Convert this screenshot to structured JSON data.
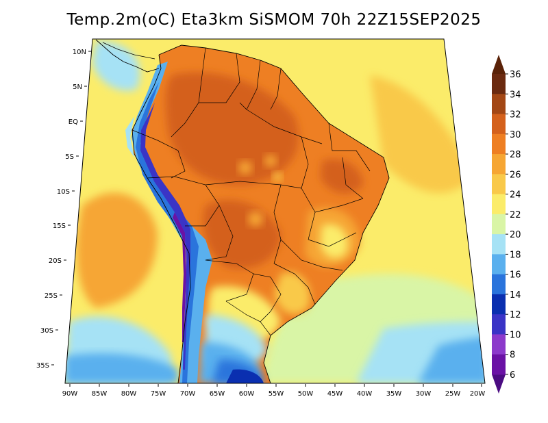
{
  "title": "Temp.2m(oC) Eta3km SiSMOM 70h 22Z15SEP2025",
  "lat_labels": [
    "10N",
    "5N",
    "EQ",
    "5S",
    "10S",
    "15S",
    "20S",
    "25S",
    "30S",
    "35S"
  ],
  "lon_labels": [
    "90W",
    "85W",
    "80W",
    "75W",
    "70W",
    "65W",
    "60W",
    "55W",
    "50W",
    "45W",
    "40W",
    "35W",
    "30W",
    "25W",
    "20W"
  ],
  "colorbar": {
    "labels": [
      "36",
      "34",
      "32",
      "30",
      "28",
      "26",
      "24",
      "22",
      "20",
      "18",
      "16",
      "14",
      "12",
      "10",
      "8",
      "6"
    ],
    "colors": [
      "#6b2a10",
      "#a34715",
      "#d4611c",
      "#ee7f23",
      "#f6a634",
      "#f9c94a",
      "#fbec6a",
      "#d9f5a6",
      "#a6e2f5",
      "#5ab0ee",
      "#2a74dc",
      "#0a2fb0",
      "#3a34c6",
      "#8c3acb",
      "#6a12a5"
    ],
    "over_color": "#5a2208",
    "under_color": "#4b0c82"
  }
}
